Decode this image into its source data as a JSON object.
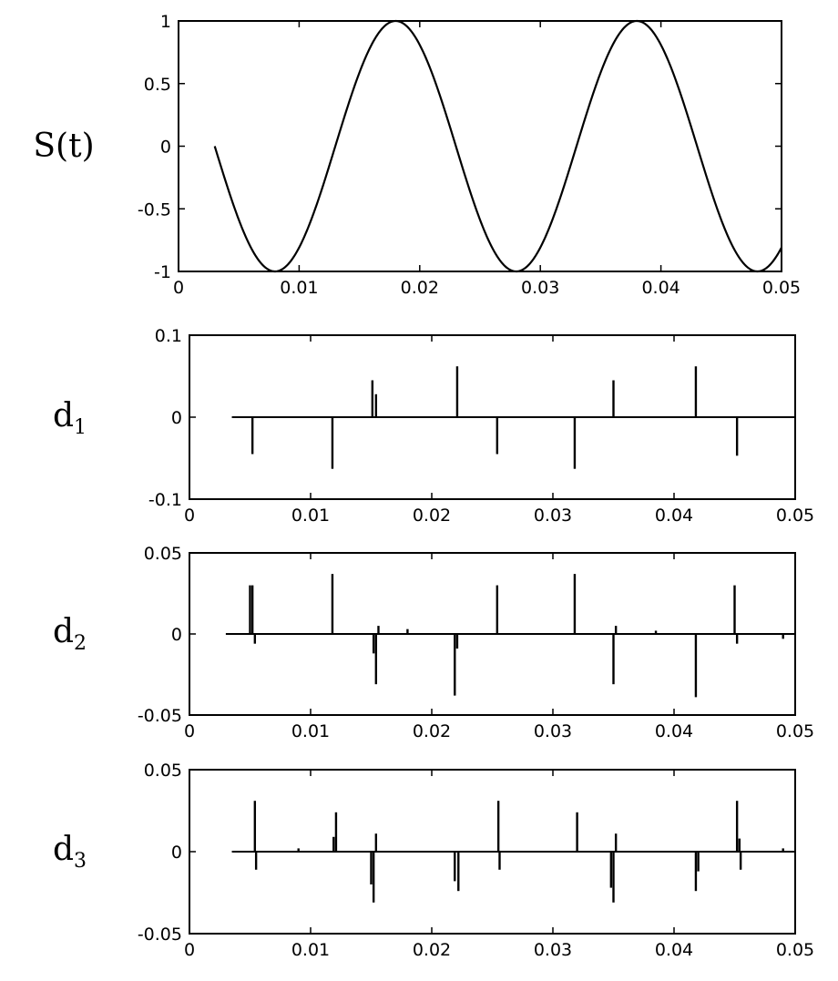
{
  "chart_data": [
    {
      "type": "line",
      "ylabel": "S(t)",
      "xlim": [
        0,
        0.05
      ],
      "ylim": [
        -1,
        1
      ],
      "xticks": [
        "0",
        "0.01",
        "0.02",
        "0.03",
        "0.04",
        "0.05"
      ],
      "yticks": [
        "1",
        "0.5",
        "0",
        "-0.5",
        "-1"
      ],
      "grid": false,
      "series": [
        {
          "function": "sine",
          "amplitude": 1,
          "period": 0.02,
          "peak_x": 0.018,
          "x_start": 0.003,
          "x_end": 0.05
        }
      ]
    },
    {
      "type": "stem",
      "ylabel": "d",
      "ylabel_sub": "1",
      "xlim": [
        0,
        0.05
      ],
      "ylim": [
        -0.1,
        0.1
      ],
      "xticks": [
        "0",
        "0.01",
        "0.02",
        "0.03",
        "0.04",
        "0.05"
      ],
      "yticks": [
        "0.1",
        "0",
        "-0.1"
      ],
      "baseline_x": [
        0.0035,
        0.05
      ],
      "stems": [
        [
          0.0052,
          -0.045
        ],
        [
          0.0118,
          -0.063
        ],
        [
          0.0151,
          0.045
        ],
        [
          0.0154,
          0.028
        ],
        [
          0.0221,
          0.062
        ],
        [
          0.0254,
          -0.045
        ],
        [
          0.0318,
          -0.063
        ],
        [
          0.035,
          0.045
        ],
        [
          0.0418,
          0.062
        ],
        [
          0.0452,
          -0.047
        ]
      ]
    },
    {
      "type": "stem",
      "ylabel": "d",
      "ylabel_sub": "2",
      "xlim": [
        0,
        0.05
      ],
      "ylim": [
        -0.05,
        0.05
      ],
      "xticks": [
        "0",
        "0.01",
        "0.02",
        "0.03",
        "0.04",
        "0.05"
      ],
      "yticks": [
        "0.05",
        "0",
        "-0.05"
      ],
      "baseline_x": [
        0.003,
        0.05
      ],
      "stems": [
        [
          0.005,
          0.03
        ],
        [
          0.0052,
          0.03
        ],
        [
          0.0054,
          -0.006
        ],
        [
          0.0118,
          0.037
        ],
        [
          0.0152,
          -0.012
        ],
        [
          0.0154,
          -0.031
        ],
        [
          0.0156,
          0.005
        ],
        [
          0.0219,
          -0.038
        ],
        [
          0.0221,
          -0.009
        ],
        [
          0.0254,
          0.03
        ],
        [
          0.0318,
          0.037
        ],
        [
          0.035,
          -0.031
        ],
        [
          0.0352,
          0.005
        ],
        [
          0.0418,
          -0.039
        ],
        [
          0.045,
          0.03
        ],
        [
          0.0452,
          -0.006
        ],
        [
          0.018,
          0.003
        ],
        [
          0.0385,
          0.002
        ],
        [
          0.049,
          -0.003
        ]
      ]
    },
    {
      "type": "stem",
      "ylabel": "d",
      "ylabel_sub": "3",
      "xlim": [
        0,
        0.05
      ],
      "ylim": [
        -0.05,
        0.05
      ],
      "xticks": [
        "0",
        "0.01",
        "0.02",
        "0.03",
        "0.04",
        "0.05"
      ],
      "yticks": [
        "0.05",
        "0",
        "-0.05"
      ],
      "baseline_x": [
        0.0035,
        0.05
      ],
      "stems": [
        [
          0.0054,
          0.031
        ],
        [
          0.0055,
          -0.011
        ],
        [
          0.0121,
          0.024
        ],
        [
          0.0119,
          0.009
        ],
        [
          0.0152,
          -0.031
        ],
        [
          0.0154,
          0.011
        ],
        [
          0.015,
          -0.02
        ],
        [
          0.0219,
          -0.018
        ],
        [
          0.0222,
          -0.024
        ],
        [
          0.0255,
          0.031
        ],
        [
          0.0256,
          -0.011
        ],
        [
          0.032,
          0.024
        ],
        [
          0.035,
          -0.031
        ],
        [
          0.0352,
          0.011
        ],
        [
          0.0348,
          -0.022
        ],
        [
          0.0418,
          -0.024
        ],
        [
          0.042,
          -0.012
        ],
        [
          0.0452,
          0.031
        ],
        [
          0.0454,
          0.008
        ],
        [
          0.0455,
          -0.011
        ],
        [
          0.009,
          0.002
        ],
        [
          0.049,
          0.002
        ]
      ]
    }
  ]
}
